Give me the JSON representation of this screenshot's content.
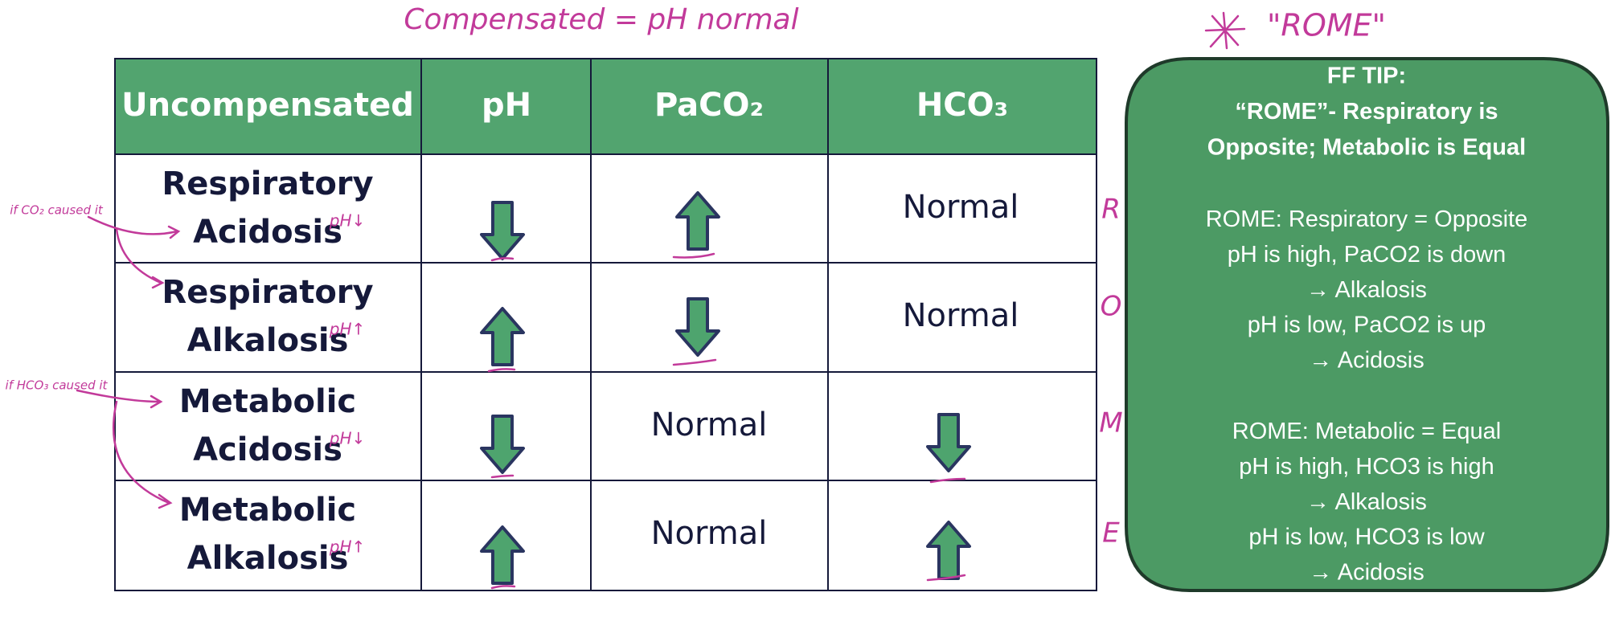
{
  "annotation_top": "Compensated = pH normal",
  "annotation_star": "\"ROME\"",
  "table": {
    "header": [
      "Uncompensated",
      "pH",
      "PaCO₂",
      "HCO₃"
    ],
    "rows": [
      {
        "label": [
          "Respiratory",
          "Acidosis"
        ],
        "note": "pH↓",
        "hco3": "Normal"
      },
      {
        "label": [
          "Respiratory",
          "Alkalosis"
        ],
        "note": "pH↑",
        "hco3": "Normal"
      },
      {
        "label": [
          "Metabolic",
          "Acidosis"
        ],
        "note": "pH↓",
        "paco2": "Normal"
      },
      {
        "label": [
          "Metabolic",
          "Alkalosis"
        ],
        "note": "pH↑",
        "paco2": "Normal"
      }
    ]
  },
  "side_notes": [
    "if CO₂ caused it",
    "if HCO₃ caused it"
  ],
  "rome_letters": [
    "R",
    "O",
    "M",
    "E"
  ],
  "tip": {
    "heading": [
      "FF TIP:",
      "“ROME”- Respiratory is",
      "Opposite;  Metabolic is Equal"
    ],
    "sections": [
      [
        "ROME: Respiratory = Opposite",
        "pH is high, PaCO2 is down",
        "→ Alkalosis",
        "pH is low, PaCO2 is up",
        "→ Acidosis"
      ],
      [
        "ROME: Metabolic = Equal",
        "pH is high, HCO3 is high",
        "→ Alkalosis",
        "pH is low, HCO3 is low",
        "→ Acidosis"
      ]
    ]
  }
}
